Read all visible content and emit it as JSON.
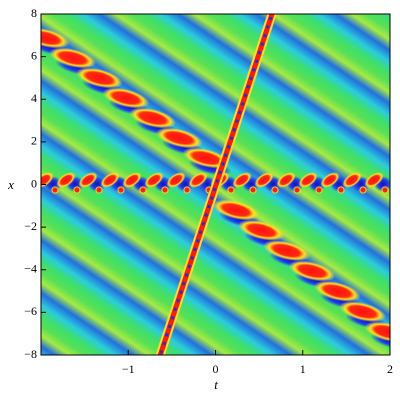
{
  "chart_data": {
    "type": "density",
    "xlabel": "t",
    "ylabel": "x",
    "xlim": [
      -2,
      2
    ],
    "ylim": [
      -8,
      8
    ],
    "xticks": [
      {
        "value": -1,
        "label": "−1"
      },
      0,
      1,
      2
    ],
    "yticks": [
      {
        "value": -8,
        "label": "−8"
      },
      {
        "value": -6,
        "label": "−6"
      },
      {
        "value": -4,
        "label": "−4"
      },
      {
        "value": -2,
        "label": "−2"
      },
      0,
      2,
      4,
      6,
      8
    ]
  }
}
